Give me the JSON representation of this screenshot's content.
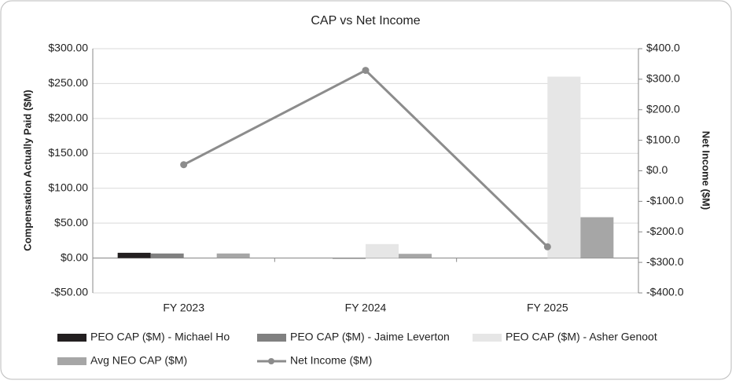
{
  "chart_data": {
    "type": "bar",
    "title": "CAP vs Net Income",
    "categories": [
      "FY 2023",
      "FY 2024",
      "FY 2025"
    ],
    "series": [
      {
        "name": "PEO CAP ($M) - Michael Ho",
        "color": "#231f20",
        "values": [
          7.5,
          null,
          null
        ]
      },
      {
        "name": "PEO CAP ($M) - Jaime Leverton",
        "color": "#808080",
        "values": [
          6.5,
          -1,
          null
        ]
      },
      {
        "name": "PEO CAP ($M) - Asher Genoot",
        "color": "#e6e6e6",
        "values": [
          null,
          20,
          260
        ]
      },
      {
        "name": "Avg NEO CAP ($M)",
        "color": "#a6a6a6",
        "values": [
          6.5,
          6,
          58.5
        ]
      },
      {
        "name": "Net Income ($M)",
        "color": "#8c8c8c",
        "type": "line",
        "axis": "y2",
        "values": [
          20,
          329,
          -249
        ]
      }
    ],
    "y_label": "Compensation Actually Paid ($M)",
    "y2_label": "Net Income ($M)",
    "ylim": [
      -50,
      300
    ],
    "yticks": [
      {
        "value": -50,
        "label": "-$50.00"
      },
      {
        "value": 0,
        "label": "$0.00"
      },
      {
        "value": 50,
        "label": "$50.00"
      },
      {
        "value": 100,
        "label": "$100.00"
      },
      {
        "value": 150,
        "label": "$150.00"
      },
      {
        "value": 200,
        "label": "$200.00"
      },
      {
        "value": 250,
        "label": "$250.00"
      },
      {
        "value": 300,
        "label": "$300.00"
      }
    ],
    "y2lim": [
      -400,
      400
    ],
    "y2ticks": [
      {
        "value": -400,
        "label": "-$400.0"
      },
      {
        "value": -300,
        "label": "-$300.0"
      },
      {
        "value": -200,
        "label": "-$200.0"
      },
      {
        "value": -100,
        "label": "-$100.0"
      },
      {
        "value": 0,
        "label": "$0.0"
      },
      {
        "value": 100,
        "label": "$100.0"
      },
      {
        "value": 200,
        "label": "$200.0"
      },
      {
        "value": 300,
        "label": "$300.0"
      },
      {
        "value": 400,
        "label": "$400.0"
      }
    ],
    "grid": true,
    "legend": "bottom"
  }
}
